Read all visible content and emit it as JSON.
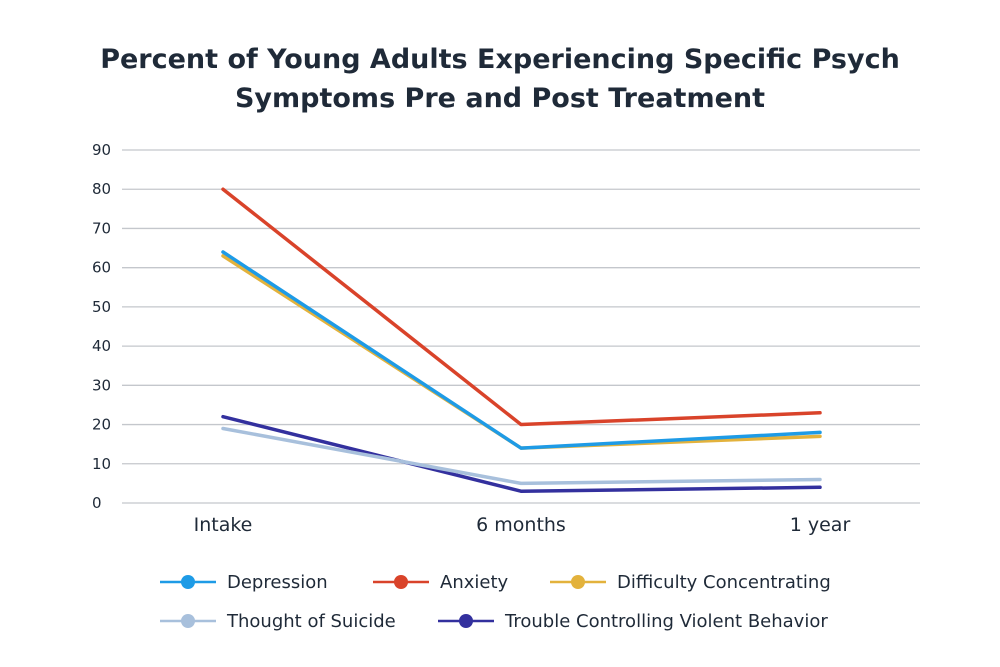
{
  "chart_data": {
    "type": "line",
    "title": "Percent of Young Adults Experiencing Specific Psych Symptoms Pre and Post Treatment",
    "title_lines": [
      "Percent of Young Adults Experiencing Specific Psych",
      "Symptoms Pre and Post Treatment"
    ],
    "xlabel": "",
    "ylabel": "",
    "categories": [
      "Intake",
      "6 months",
      "1 year"
    ],
    "ylim": [
      0,
      90
    ],
    "yticks": [
      0,
      10,
      20,
      30,
      40,
      50,
      60,
      70,
      80,
      90
    ],
    "grid": true,
    "legend_position": "bottom",
    "series": [
      {
        "name": "Depression",
        "values": [
          64,
          14,
          18
        ],
        "color": "#1e9be6"
      },
      {
        "name": "Anxiety",
        "values": [
          80,
          20,
          23
        ],
        "color": "#d9432a"
      },
      {
        "name": "Difficulty Concentrating",
        "values": [
          63,
          14,
          17
        ],
        "color": "#e3b23c"
      },
      {
        "name": "Thought of Suicide",
        "values": [
          19,
          5,
          6
        ],
        "color": "#a8c0dc"
      },
      {
        "name": "Trouble Controlling Violent Behavior",
        "values": [
          22,
          3,
          4
        ],
        "color": "#33309e"
      }
    ]
  }
}
